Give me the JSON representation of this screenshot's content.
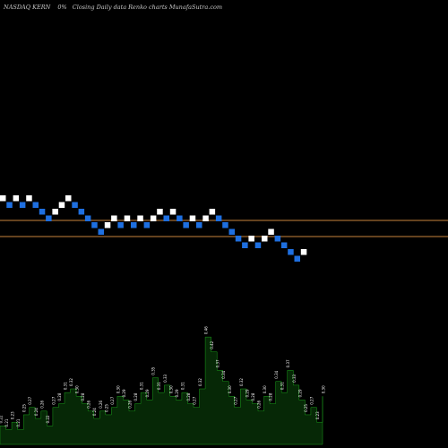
{
  "header": {
    "ticker_line": "NASDAQ KERN",
    "change_line": "0%",
    "subtitle_line": "Closing Daily data  Renko  charts MunafaSutra.com"
  },
  "chart_data": {
    "type": "renko",
    "title": "NASDAQ KERN",
    "subtitle": "Closing Daily data  Renko  charts MunafaSutra.com",
    "colors": {
      "up_brick": "#ffffff",
      "down_brick": "#1e6fe0",
      "reference_line": "#c8843c",
      "volume_fill": "#062806",
      "volume_stroke": "#1ba01b"
    },
    "reference_levels": [
      0.43,
      0.72
    ],
    "bricks": [
      {
        "level": 0,
        "dir": "up"
      },
      {
        "level": -1,
        "dir": "down"
      },
      {
        "level": 0,
        "dir": "up"
      },
      {
        "level": -1,
        "dir": "down"
      },
      {
        "level": 0,
        "dir": "up"
      },
      {
        "level": -1,
        "dir": "down"
      },
      {
        "level": -2,
        "dir": "down"
      },
      {
        "level": -3,
        "dir": "down"
      },
      {
        "level": -2,
        "dir": "up"
      },
      {
        "level": -1,
        "dir": "up"
      },
      {
        "level": 0,
        "dir": "up"
      },
      {
        "level": -1,
        "dir": "down"
      },
      {
        "level": -2,
        "dir": "down"
      },
      {
        "level": -3,
        "dir": "down"
      },
      {
        "level": -4,
        "dir": "down"
      },
      {
        "level": -5,
        "dir": "down"
      },
      {
        "level": -4,
        "dir": "up"
      },
      {
        "level": -3,
        "dir": "up"
      },
      {
        "level": -4,
        "dir": "down"
      },
      {
        "level": -3,
        "dir": "up"
      },
      {
        "level": -4,
        "dir": "down"
      },
      {
        "level": -3,
        "dir": "up"
      },
      {
        "level": -4,
        "dir": "down"
      },
      {
        "level": -3,
        "dir": "up"
      },
      {
        "level": -2,
        "dir": "up"
      },
      {
        "level": -3,
        "dir": "down"
      },
      {
        "level": -2,
        "dir": "up"
      },
      {
        "level": -3,
        "dir": "down"
      },
      {
        "level": -4,
        "dir": "down"
      },
      {
        "level": -3,
        "dir": "up"
      },
      {
        "level": -4,
        "dir": "down"
      },
      {
        "level": -3,
        "dir": "up"
      },
      {
        "level": -2,
        "dir": "up"
      },
      {
        "level": -3,
        "dir": "down"
      },
      {
        "level": -4,
        "dir": "down"
      },
      {
        "level": -5,
        "dir": "down"
      },
      {
        "level": -6,
        "dir": "down"
      },
      {
        "level": -7,
        "dir": "down"
      },
      {
        "level": -6,
        "dir": "up"
      },
      {
        "level": -7,
        "dir": "down"
      },
      {
        "level": -6,
        "dir": "up"
      },
      {
        "level": -5,
        "dir": "up"
      },
      {
        "level": -6,
        "dir": "down"
      },
      {
        "level": -7,
        "dir": "down"
      },
      {
        "level": -8,
        "dir": "down"
      },
      {
        "level": -9,
        "dir": "down"
      },
      {
        "level": -8,
        "dir": "up"
      }
    ],
    "volume": {
      "values": [
        0.22,
        0.21,
        0.23,
        0.21,
        0.25,
        0.27,
        0.24,
        0.26,
        0.22,
        0.27,
        0.28,
        0.31,
        0.32,
        0.3,
        0.28,
        0.26,
        0.24,
        0.26,
        0.25,
        0.27,
        0.3,
        0.29,
        0.26,
        0.28,
        0.31,
        0.29,
        0.35,
        0.31,
        0.33,
        0.3,
        0.29,
        0.31,
        0.28,
        0.27,
        0.32,
        0.46,
        0.42,
        0.37,
        0.34,
        0.3,
        0.27,
        0.32,
        0.29,
        0.28,
        0.26,
        0.3,
        0.28,
        0.34,
        0.31,
        0.37,
        0.33,
        0.29,
        0.25,
        0.27,
        0.23,
        0.3
      ],
      "labels": [
        "0.22",
        "0.21",
        "0.23",
        "0.21",
        "0.25",
        "0.27",
        "0.24",
        "0.26",
        "0.22",
        "0.27",
        "0.28",
        "0.31",
        "0.32",
        "0.30",
        "0.28",
        "0.26",
        "0.24",
        "0.26",
        "0.25",
        "0.27",
        "0.30",
        "0.29",
        "0.26",
        "0.28",
        "0.31",
        "0.29",
        "0.35",
        "0.31",
        "0.33",
        "0.30",
        "0.29",
        "0.31",
        "0.28",
        "0.27",
        "0.32",
        "0.46",
        "0.42",
        "0.37",
        "0.34",
        "0.30",
        "0.27",
        "0.32",
        "0.29",
        "0.28",
        "0.26",
        "0.30",
        "0.28",
        "0.34",
        "0.31",
        "0.37",
        "0.33",
        "0.29",
        "0.25",
        "0.27",
        "0.23",
        "0.30"
      ]
    }
  }
}
